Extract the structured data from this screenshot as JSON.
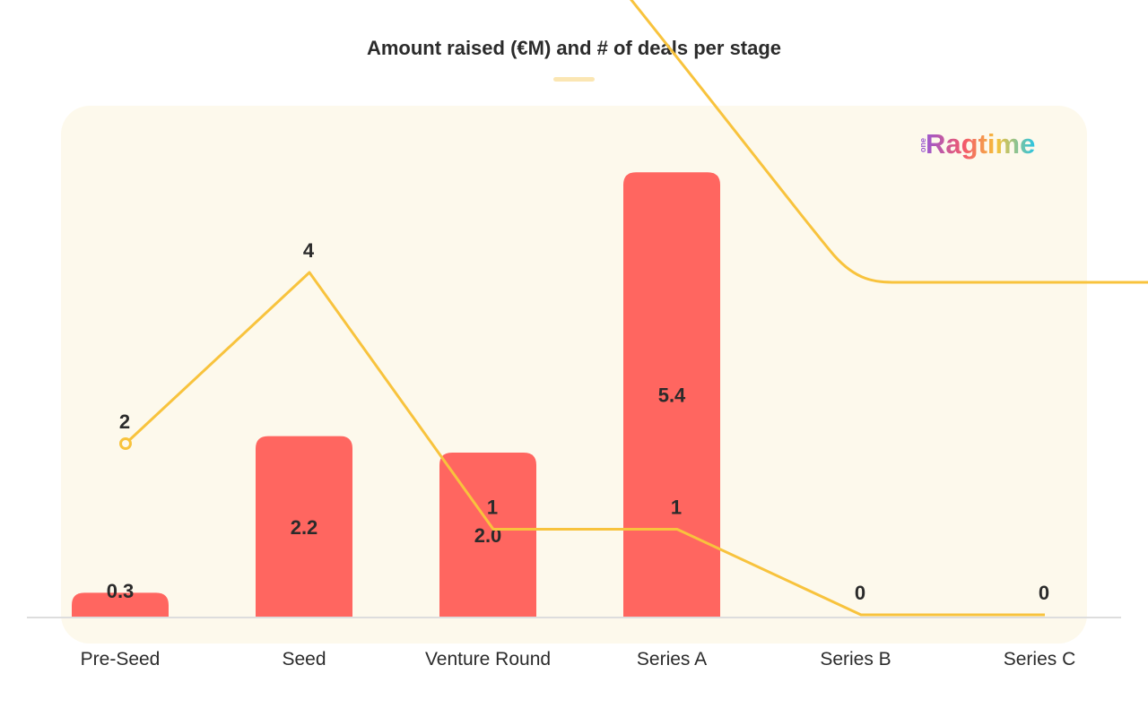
{
  "chart_data": {
    "type": "bar",
    "title": "Amount raised (€M) and # of deals per stage",
    "categories": [
      "Pre-Seed",
      "Seed",
      "Venture Round",
      "Series A",
      "Series B",
      "Series C"
    ],
    "series": [
      {
        "name": "",
        "kind": "bar",
        "values": [
          0.3,
          2.2,
          2.0,
          5.4,
          0,
          0
        ],
        "show_labels": [
          true,
          true,
          true,
          true,
          false,
          false
        ]
      },
      {
        "name": "",
        "kind": "line",
        "values": [
          2,
          4,
          1,
          1,
          0,
          0
        ]
      }
    ],
    "colors": {
      "bar": "#ff6660",
      "line": "#f8c33d",
      "panel": "#fdf9ec",
      "text": "#2b2b2b",
      "axis": "#dddddd"
    },
    "legend": "none",
    "grid": false
  },
  "brand": {
    "logo_prefix": "one",
    "logo_text": "Ragtime"
  }
}
